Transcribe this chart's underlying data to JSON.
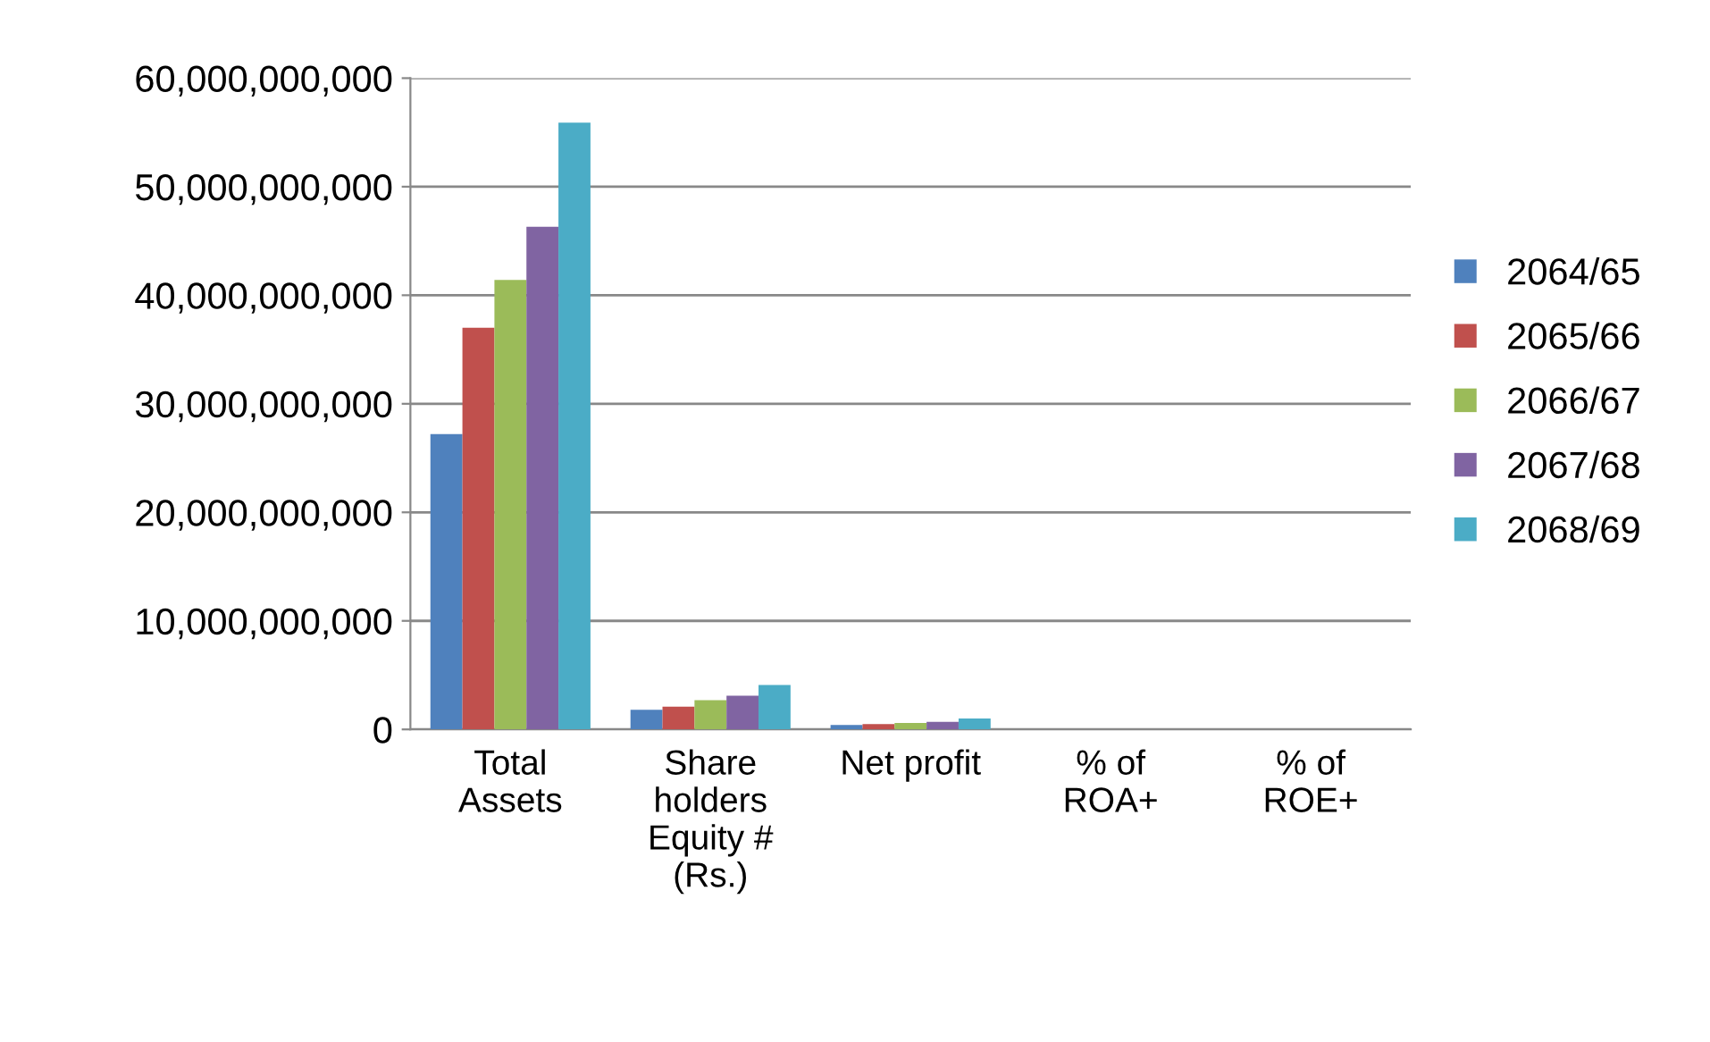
{
  "chart_data": {
    "type": "bar",
    "categories": [
      "Total\nAssets",
      "Share\nholders\nEquity #\n(Rs.)",
      "Net profit",
      "% of\nROA+",
      "% of\nROE+"
    ],
    "series": [
      {
        "name": "2064/65",
        "color": "#4f81bd",
        "values": [
          27200000000,
          1800000000,
          400000000,
          0,
          0
        ]
      },
      {
        "name": "2065/66",
        "color": "#c0504d",
        "values": [
          37000000000,
          2100000000,
          500000000,
          0,
          0
        ]
      },
      {
        "name": "2066/67",
        "color": "#9bbb59",
        "values": [
          41400000000,
          2700000000,
          600000000,
          0,
          0
        ]
      },
      {
        "name": "2067/68",
        "color": "#8064a2",
        "values": [
          46300000000,
          3100000000,
          700000000,
          0,
          0
        ]
      },
      {
        "name": "2068/69",
        "color": "#4bacc6",
        "values": [
          55900000000,
          4100000000,
          1000000000,
          0,
          0
        ]
      }
    ],
    "ylim": [
      0,
      60000000000
    ],
    "yticks": [
      {
        "value": 0,
        "label": "0"
      },
      {
        "value": 10000000000,
        "label": "10,000,000,000"
      },
      {
        "value": 20000000000,
        "label": "20,000,000,000"
      },
      {
        "value": 30000000000,
        "label": "30,000,000,000"
      },
      {
        "value": 40000000000,
        "label": "40,000,000,000"
      },
      {
        "value": 50000000000,
        "label": "50,000,000,000"
      },
      {
        "value": 60000000000,
        "label": "60,000,000,000"
      }
    ],
    "grid": "y",
    "legend": "right"
  }
}
